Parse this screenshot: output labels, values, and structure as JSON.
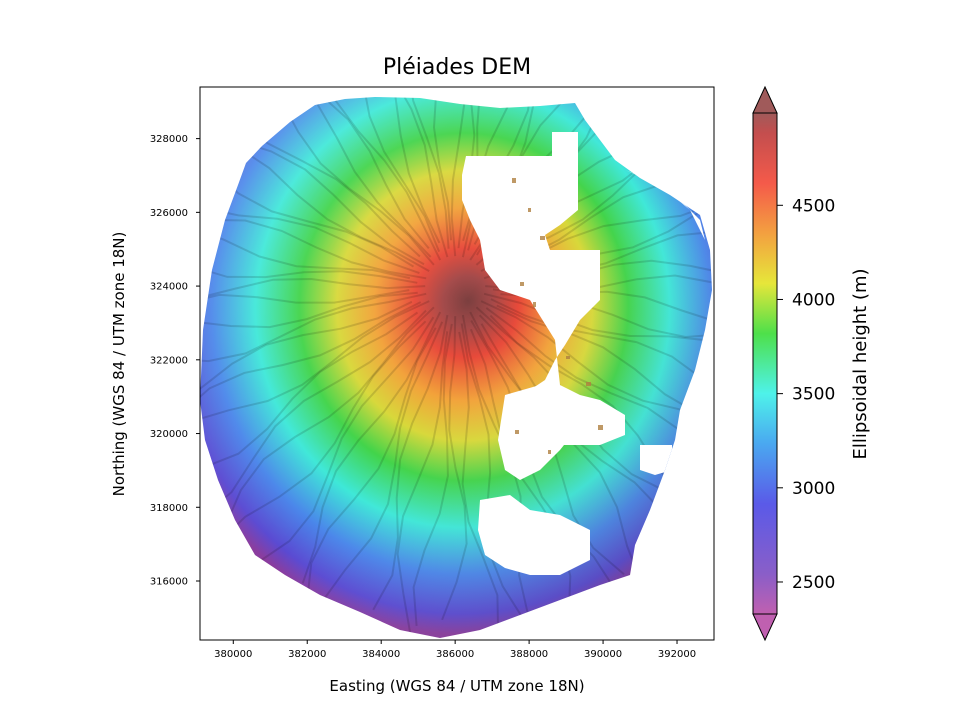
{
  "chart_data": {
    "type": "heatmap",
    "title": "Pléiades DEM",
    "xlabel": "Easting (WGS 84 / UTM zone 18N)",
    "ylabel": "Northing (WGS 84 / UTM zone 18N)",
    "xlim": [
      379100,
      393000
    ],
    "ylim": [
      314400,
      329400
    ],
    "xticks": [
      380000,
      382000,
      384000,
      386000,
      388000,
      390000,
      392000
    ],
    "yticks": [
      316000,
      318000,
      320000,
      322000,
      324000,
      326000,
      328000
    ],
    "colorbar": {
      "label": "Ellipsoidal height (m)",
      "range": [
        2330,
        4990
      ],
      "ticks": [
        2500,
        3000,
        3500,
        4000,
        4500
      ],
      "colormap": "gist_rainbow_r (purple → blue → cyan → green → yellow → red → brown)",
      "extend": "both"
    },
    "summit": {
      "x": 386000,
      "y": 324000,
      "height": 4950
    },
    "notes": "Shaded-relief elevation raster of a volcano; no-data (white) gaps east of the summit"
  }
}
